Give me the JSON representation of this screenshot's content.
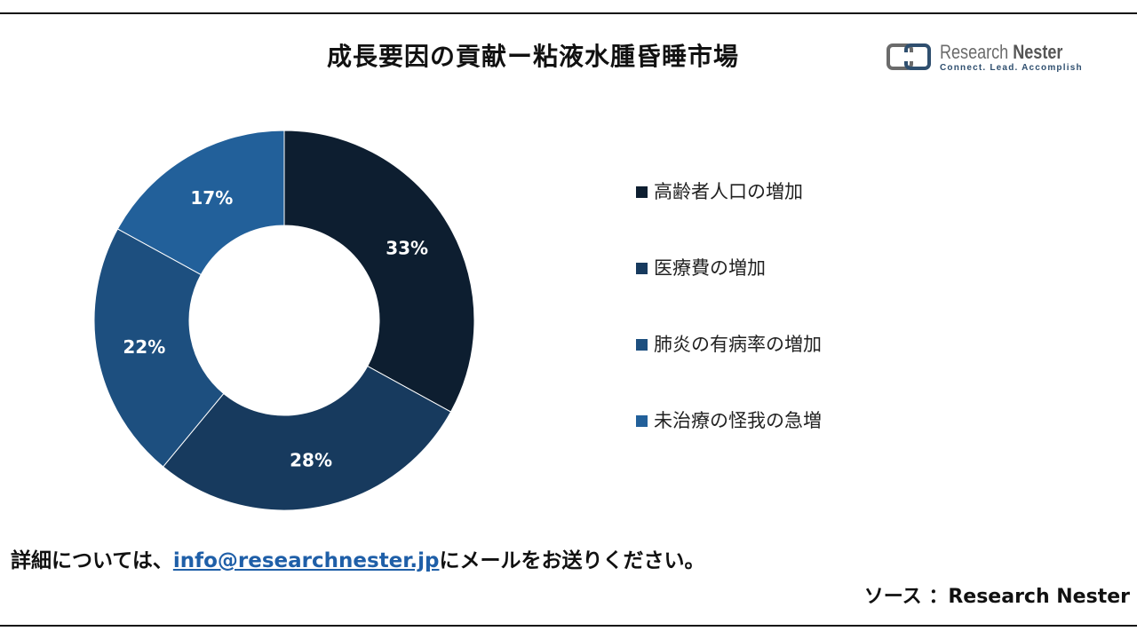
{
  "title": "成長要因の貢献ー粘液水腫昏睡市場",
  "logo": {
    "name_part1": "Research ",
    "name_part2": "Nester",
    "tagline": "Connect. Lead. Accomplish"
  },
  "chart_data": {
    "type": "pie",
    "donut": true,
    "categories": [
      "高齢者人口の増加",
      "医療費の増加",
      "肺炎の有病率の増加",
      "未治療の怪我の急増"
    ],
    "values": [
      33,
      28,
      22,
      17
    ],
    "labels": [
      "33%",
      "28%",
      "22%",
      "17%"
    ],
    "colors": [
      "#0d1e30",
      "#173a5e",
      "#1d4f7f",
      "#22609a"
    ],
    "legend_placement": "right"
  },
  "footer": {
    "prefix": "詳細については、",
    "email": "info@researchnester.jp",
    "suffix": "にメールをお送りください。"
  },
  "source": "ソース ：Research Nester"
}
